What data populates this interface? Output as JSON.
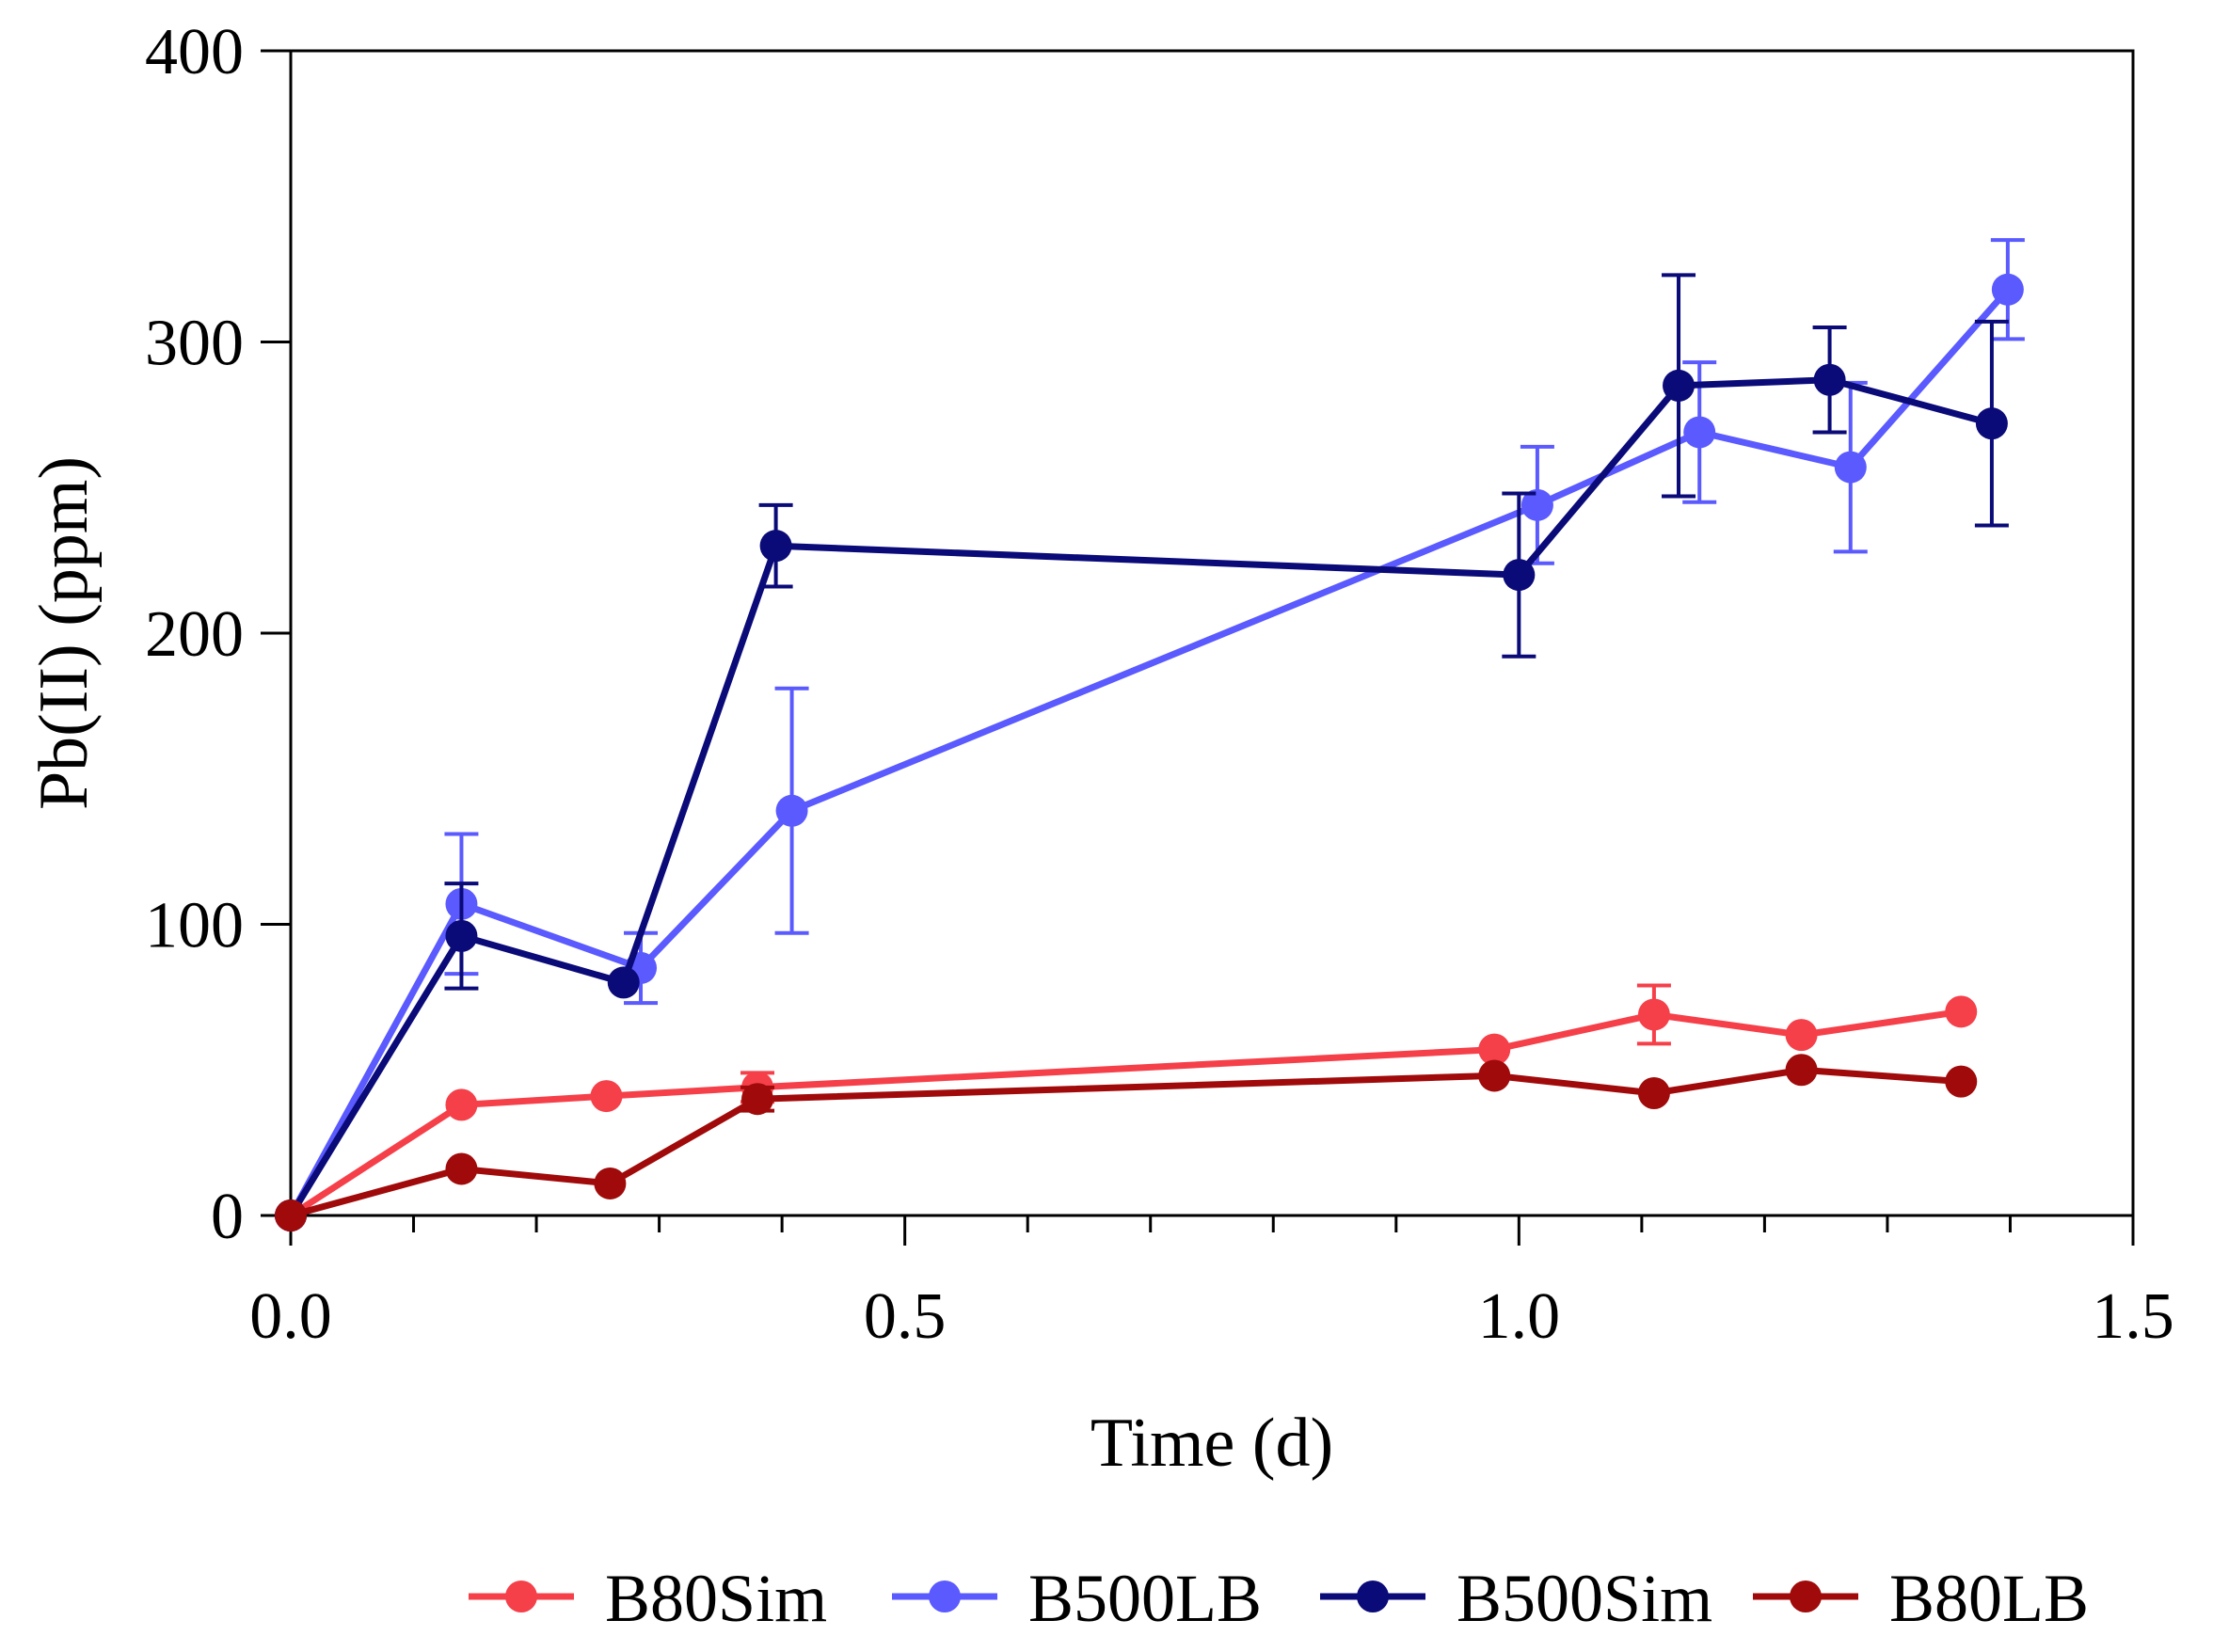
{
  "chart_data": {
    "type": "line",
    "title": "",
    "xlabel": "Time (d)",
    "ylabel": "Pb(II) (ppm)",
    "xlim": [
      0,
      1.5
    ],
    "ylim": [
      0,
      400
    ],
    "x_major_ticks": [
      0,
      0.5,
      1.0,
      1.5
    ],
    "x_tick_labels": [
      "0.0",
      "0.5",
      "1.0",
      "1.5"
    ],
    "x_minor_step": 0.1,
    "y_major_ticks": [
      0,
      100,
      200,
      300,
      400
    ],
    "y_tick_labels": [
      "0",
      "100",
      "200",
      "300",
      "400"
    ],
    "grid": false,
    "legend_position": "bottom",
    "series": [
      {
        "name": "B80Sim",
        "color": "#f5404a",
        "x": [
          0,
          0.139,
          0.257,
          0.38,
          0.98,
          1.11,
          1.23,
          1.36
        ],
        "values": [
          0,
          38,
          41,
          44,
          57,
          69,
          62,
          70
        ],
        "errors": [
          0,
          0,
          0,
          5,
          0,
          10,
          0,
          0
        ]
      },
      {
        "name": "B500LB",
        "color": "#5a5aff",
        "x": [
          0,
          0.139,
          0.285,
          0.408,
          1.015,
          1.147,
          1.27,
          1.398
        ],
        "values": [
          0,
          107,
          85,
          139,
          244,
          269,
          257,
          318
        ],
        "errors": [
          0,
          24,
          12,
          42,
          20,
          24,
          29,
          17
        ]
      },
      {
        "name": "B500Sim",
        "color": "#0a0a78",
        "x": [
          0,
          0.139,
          0.271,
          0.395,
          1.0,
          1.13,
          1.253,
          1.385
        ],
        "values": [
          0,
          96,
          80,
          230,
          220,
          285,
          287,
          272
        ],
        "errors": [
          0,
          18,
          0,
          14,
          28,
          38,
          18,
          35
        ]
      },
      {
        "name": "B80LB",
        "color": "#a00a0a",
        "x": [
          0,
          0.139,
          0.26,
          0.38,
          0.98,
          1.11,
          1.23,
          1.36
        ],
        "values": [
          0,
          16,
          11,
          40,
          48,
          42,
          50,
          46
        ],
        "errors": [
          0,
          0,
          0,
          4,
          0,
          0,
          0,
          0
        ]
      }
    ],
    "legend_order": [
      "B80Sim",
      "B500LB",
      "B500Sim",
      "B80LB"
    ]
  }
}
